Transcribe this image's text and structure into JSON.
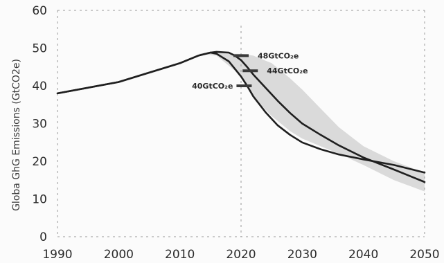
{
  "chart_data": {
    "type": "line",
    "title": "",
    "xlabel": "",
    "ylabel": "Globa GhG Emissions (GtCO2e)",
    "xlim": [
      1990,
      2050
    ],
    "ylim": [
      0,
      60
    ],
    "x_ticks": [
      1990,
      2000,
      2010,
      2020,
      2030,
      2040,
      2050
    ],
    "y_ticks": [
      0,
      10,
      20,
      30,
      40,
      50,
      60
    ],
    "grid": false,
    "legend": "none",
    "band_color": "#c8c8c8",
    "line_color": "#1f1f1f",
    "series": [
      {
        "x": [
          1990,
          2000,
          2005,
          2010,
          2013,
          2015,
          2016,
          2018,
          2019,
          2020,
          2021,
          2022,
          2024,
          2026,
          2028,
          2030,
          2033,
          2036,
          2040,
          2045,
          2050
        ],
        "values": [
          38,
          41,
          43.5,
          46,
          48,
          48.8,
          49,
          48.8,
          48,
          46.8,
          45,
          43,
          39.5,
          36,
          32.8,
          30,
          27,
          24.2,
          21,
          17.8,
          14.5
        ]
      },
      {
        "x": [
          1990,
          2000,
          2005,
          2010,
          2013,
          2015,
          2016,
          2018,
          2020,
          2021,
          2022,
          2024,
          2026,
          2028,
          2030,
          2033,
          2036,
          2040,
          2045,
          2050
        ],
        "values": [
          38,
          41,
          43.5,
          46,
          48,
          48.8,
          48.5,
          46.5,
          42.5,
          40,
          37.2,
          33,
          29.5,
          27,
          25,
          23.2,
          21.8,
          20.5,
          19,
          17
        ]
      }
    ],
    "band": {
      "x": [
        2013,
        2016,
        2019,
        2020,
        2022,
        2025,
        2028,
        2030,
        2033,
        2036,
        2040,
        2045,
        2050
      ],
      "upper": [
        48.5,
        49,
        48.5,
        48.5,
        48,
        46,
        42,
        39,
        34,
        29,
        24,
        20,
        17
      ],
      "lower": [
        48.5,
        48,
        44,
        42,
        37,
        32,
        28,
        26,
        24,
        22,
        19,
        15,
        12
      ]
    },
    "annotations": [
      {
        "text": "48GtCO₂e",
        "x": 2020,
        "y": 48,
        "label_side": "right"
      },
      {
        "text": "44GtCO₂e",
        "x": 2021.5,
        "y": 44,
        "label_side": "right"
      },
      {
        "text": "40GtCO₂e",
        "x": 2020.5,
        "y": 40,
        "label_side": "left"
      }
    ],
    "vertical_marker_x": 2020
  }
}
